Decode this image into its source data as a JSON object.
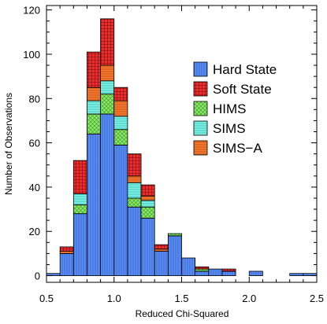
{
  "chart_data": {
    "type": "bar",
    "stacked": true,
    "title": "",
    "xlabel": "Reduced Chi-Squared",
    "ylabel": "Number of Observations",
    "xlim": [
      0.5,
      2.5
    ],
    "ylim": [
      -3,
      122
    ],
    "bin_width": 0.1,
    "x_ticks": [
      0.5,
      1.0,
      1.5,
      2.0,
      2.5
    ],
    "x_tick_labels": [
      "0.5",
      "1.0",
      "1.5",
      "2.0",
      "2.5"
    ],
    "y_ticks": [
      0,
      20,
      40,
      60,
      80,
      100,
      120
    ],
    "y_tick_labels": [
      "0",
      "20",
      "40",
      "60",
      "80",
      "100",
      "120"
    ],
    "x": [
      0.55,
      0.65,
      0.75,
      0.85,
      0.95,
      1.05,
      1.15,
      1.25,
      1.35,
      1.45,
      1.55,
      1.65,
      1.75,
      1.85,
      1.95,
      2.05,
      2.15,
      2.25,
      2.35,
      2.45
    ],
    "series": [
      {
        "name": "Hard State",
        "color": "#5b8ef0",
        "pattern": "vertical-lines",
        "values": [
          1,
          10,
          28,
          64,
          73,
          59,
          31,
          26,
          11,
          18,
          8,
          2,
          3,
          2,
          0,
          2,
          0,
          0,
          1,
          1
        ]
      },
      {
        "name": "Soft State",
        "color": "#e83030",
        "pattern": "grid",
        "values": [
          0,
          2,
          15,
          16,
          21,
          6,
          10,
          5,
          2,
          0,
          0,
          1,
          0,
          1,
          0,
          0,
          0,
          0,
          0,
          0
        ]
      },
      {
        "name": "HIMS",
        "color": "#8ee86a",
        "pattern": "cross-hatch",
        "values": [
          0,
          0,
          4,
          9,
          9,
          7,
          4,
          5,
          0,
          1,
          0,
          1,
          0,
          0,
          0,
          0,
          0,
          0,
          0,
          0
        ]
      },
      {
        "name": "SIMS",
        "color": "#7ef0e4",
        "pattern": "horizontal-lines",
        "values": [
          0,
          0,
          5,
          6,
          6,
          6,
          7,
          3,
          0,
          0,
          0,
          0,
          0,
          0,
          0,
          0,
          0,
          0,
          0,
          0
        ]
      },
      {
        "name": "SIMS−A",
        "color": "#f57a30",
        "pattern": "horizontal-lines",
        "values": [
          0,
          1,
          0,
          6,
          7,
          7,
          3,
          2,
          1,
          0,
          0,
          0,
          0,
          0,
          0,
          0,
          0,
          0,
          0,
          0
        ]
      }
    ],
    "stack_order": [
      "Hard State",
      "HIMS",
      "SIMS",
      "SIMS−A",
      "Soft State"
    ],
    "legend_position": "right"
  }
}
